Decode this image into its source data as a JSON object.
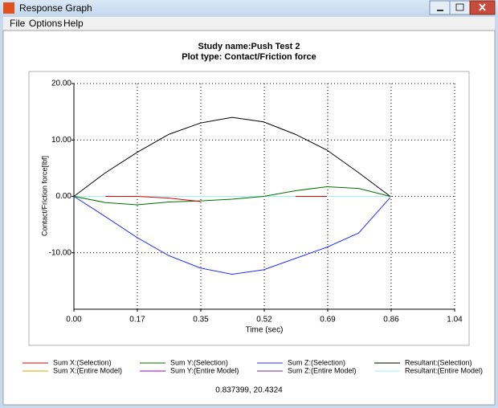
{
  "window": {
    "title": "Response Graph",
    "menu": [
      "File",
      "Options",
      "Help"
    ]
  },
  "chart_data": {
    "type": "line",
    "title": "Study name:Push Test 2",
    "subtitle": "Plot type: Contact/Friction force",
    "x_label": "Time (sec)",
    "y_label": "Contact/Friction force[lbf]",
    "x": [
      0,
      0.086,
      0.172,
      0.258,
      0.344,
      0.43,
      0.516,
      0.602,
      0.688,
      0.774,
      0.86
    ],
    "series": [
      {
        "name": "Sum X:(Selection)",
        "color": "#e00000",
        "values": [
          null,
          0,
          0,
          -0.3,
          -0.9,
          null,
          null,
          0,
          0,
          null,
          null
        ]
      },
      {
        "name": "Sum X:(Entire Model)",
        "color": "#e0a000",
        "values": [
          null,
          null,
          null,
          null,
          null,
          null,
          null,
          null,
          null,
          null,
          null
        ]
      },
      {
        "name": "Sum Y:(Selection)",
        "color": "#007000",
        "values": [
          0,
          -1.1,
          -1.5,
          -1.0,
          -0.8,
          -0.5,
          0,
          1.0,
          1.7,
          1.4,
          0
        ]
      },
      {
        "name": "Sum Y:(Entire Model)",
        "color": "#a000c0",
        "values": [
          null,
          null,
          null,
          null,
          null,
          null,
          null,
          null,
          null,
          null,
          null
        ]
      },
      {
        "name": "Sum Z:(Selection)",
        "color": "#2030ff",
        "values": [
          0,
          -3.6,
          -7.3,
          -10.5,
          -12.7,
          -13.8,
          -13.0,
          -11.0,
          -9.0,
          -6.5,
          -0.2
        ]
      },
      {
        "name": "Sum Z:(Entire Model)",
        "color": "#8020a0",
        "values": [
          null,
          null,
          null,
          null,
          null,
          null,
          null,
          null,
          null,
          null,
          null
        ]
      },
      {
        "name": "Resultant:(Selection)",
        "color": "#000000",
        "values": [
          0,
          4.2,
          7.8,
          11.0,
          13.0,
          14.0,
          13.2,
          11.0,
          8.2,
          4.2,
          0
        ]
      },
      {
        "name": "Resultant:(Entire Model)",
        "color": "#a0f0f0",
        "values": [
          0,
          0,
          0,
          0,
          0,
          0,
          0,
          0,
          0,
          0,
          0
        ]
      }
    ],
    "xlim": [
      0,
      1.035
    ],
    "xticks": [
      {
        "value": 0,
        "label": "0.00"
      },
      {
        "value": 0.1725,
        "label": "0.17"
      },
      {
        "value": 0.345,
        "label": "0.35"
      },
      {
        "value": 0.5175,
        "label": "0.52"
      },
      {
        "value": 0.69,
        "label": "0.69"
      },
      {
        "value": 0.8625,
        "label": "0.86"
      },
      {
        "value": 1.035,
        "label": "1.04"
      }
    ],
    "ylim": [
      -20,
      20
    ],
    "yticks": [
      {
        "value": 20,
        "label": "20.00"
      },
      {
        "value": 10,
        "label": "10.00"
      },
      {
        "value": 0,
        "label": "0.00"
      },
      {
        "value": -10,
        "label": "-10.00"
      }
    ],
    "grid": true
  },
  "status": "0.837399, 20.4324"
}
